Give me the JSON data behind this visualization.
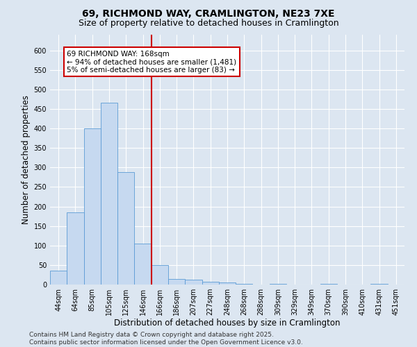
{
  "title": "69, RICHMOND WAY, CRAMLINGTON, NE23 7XE",
  "subtitle": "Size of property relative to detached houses in Cramlington",
  "xlabel": "Distribution of detached houses by size in Cramlington",
  "ylabel": "Number of detached properties",
  "bar_labels": [
    "44sqm",
    "64sqm",
    "85sqm",
    "105sqm",
    "125sqm",
    "146sqm",
    "166sqm",
    "186sqm",
    "207sqm",
    "227sqm",
    "248sqm",
    "268sqm",
    "288sqm",
    "309sqm",
    "329sqm",
    "349sqm",
    "370sqm",
    "390sqm",
    "410sqm",
    "431sqm",
    "451sqm"
  ],
  "bar_values": [
    35,
    185,
    400,
    465,
    288,
    105,
    50,
    15,
    13,
    8,
    5,
    1,
    0,
    1,
    0,
    0,
    1,
    0,
    0,
    1,
    0
  ],
  "bar_color": "#c6d9f0",
  "bar_edge_color": "#5b9bd5",
  "vline_x_index": 6,
  "vline_color": "#cc0000",
  "annotation_line1": "69 RICHMOND WAY: 168sqm",
  "annotation_line2": "← 94% of detached houses are smaller (1,481)",
  "annotation_line3": "5% of semi-detached houses are larger (83) →",
  "annotation_box_color": "#ffffff",
  "annotation_box_edge": "#cc0000",
  "ylim": [
    0,
    640
  ],
  "yticks": [
    0,
    50,
    100,
    150,
    200,
    250,
    300,
    350,
    400,
    450,
    500,
    550,
    600
  ],
  "footnote": "Contains HM Land Registry data © Crown copyright and database right 2025.\nContains public sector information licensed under the Open Government Licence v3.0.",
  "bg_color": "#dce6f1",
  "plot_bg_color": "#dce6f1",
  "title_fontsize": 10,
  "subtitle_fontsize": 9,
  "axis_label_fontsize": 8.5,
  "tick_fontsize": 7,
  "footnote_fontsize": 6.5,
  "annotation_fontsize": 7.5
}
